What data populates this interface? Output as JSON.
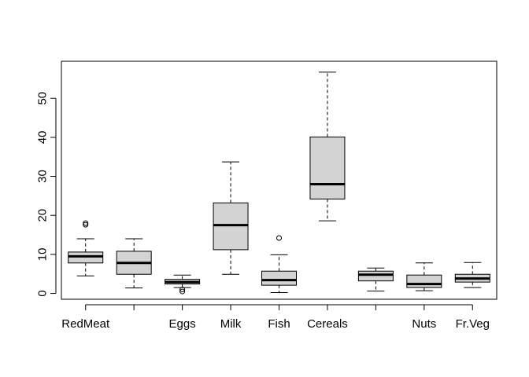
{
  "chart_data": {
    "type": "boxplot",
    "title": "",
    "xlabel": "",
    "ylabel": "",
    "ylim": [
      -1.5,
      59.5
    ],
    "y_ticks": [
      0,
      10,
      20,
      30,
      40,
      50
    ],
    "box_fill": "#d3d3d3",
    "stroke_color": "#000000",
    "categories": [
      "RedMeat",
      "",
      "Eggs",
      "Milk",
      "Fish",
      "Cereals",
      "",
      "Nuts",
      "Fr.Veg"
    ],
    "boxes": [
      {
        "label": "RedMeat",
        "whisker_low": 4.5,
        "q1": 7.8,
        "median": 9.5,
        "q3": 10.6,
        "whisker_high": 14.0,
        "outliers": [
          17.6,
          18.0
        ]
      },
      {
        "label": "",
        "whisker_low": 1.4,
        "q1": 4.9,
        "median": 7.8,
        "q3": 10.8,
        "whisker_high": 14.0,
        "outliers": []
      },
      {
        "label": "Eggs",
        "whisker_low": 1.5,
        "q1": 2.4,
        "median": 2.9,
        "q3": 3.6,
        "whisker_high": 4.7,
        "outliers": [
          0.5,
          1.0
        ]
      },
      {
        "label": "Milk",
        "whisker_low": 4.9,
        "q1": 11.2,
        "median": 17.5,
        "q3": 23.2,
        "whisker_high": 33.7,
        "outliers": []
      },
      {
        "label": "Fish",
        "whisker_low": 0.2,
        "q1": 2.1,
        "median": 3.4,
        "q3": 5.7,
        "whisker_high": 9.9,
        "outliers": [
          14.2
        ]
      },
      {
        "label": "Cereals",
        "whisker_low": 18.6,
        "q1": 24.2,
        "median": 28.0,
        "q3": 40.1,
        "whisker_high": 56.7,
        "outliers": []
      },
      {
        "label": "",
        "whisker_low": 0.6,
        "q1": 3.2,
        "median": 4.8,
        "q3": 5.7,
        "whisker_high": 6.5,
        "outliers": []
      },
      {
        "label": "Nuts",
        "whisker_low": 0.7,
        "q1": 1.5,
        "median": 2.4,
        "q3": 4.7,
        "whisker_high": 7.8,
        "outliers": []
      },
      {
        "label": "Fr.Veg",
        "whisker_low": 1.5,
        "q1": 2.9,
        "median": 3.8,
        "q3": 4.9,
        "whisker_high": 7.9,
        "outliers": []
      }
    ]
  }
}
